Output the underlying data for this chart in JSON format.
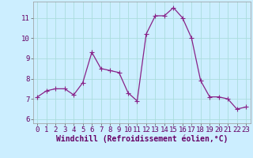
{
  "x": [
    0,
    1,
    2,
    3,
    4,
    5,
    6,
    7,
    8,
    9,
    10,
    11,
    12,
    13,
    14,
    15,
    16,
    17,
    18,
    19,
    20,
    21,
    22,
    23
  ],
  "y": [
    7.1,
    7.4,
    7.5,
    7.5,
    7.2,
    7.8,
    9.3,
    8.5,
    8.4,
    8.3,
    7.3,
    6.9,
    10.2,
    11.1,
    11.1,
    11.5,
    11.0,
    10.0,
    7.9,
    7.1,
    7.1,
    7.0,
    6.5,
    6.6
  ],
  "line_color": "#882288",
  "marker_color": "#882288",
  "bg_color": "#cceeff",
  "grid_color": "#aadddd",
  "xlabel": "Windchill (Refroidissement éolien,°C)",
  "ylim": [
    5.8,
    11.8
  ],
  "xlim": [
    -0.5,
    23.5
  ],
  "yticks": [
    6,
    7,
    8,
    9,
    10,
    11
  ],
  "xticks": [
    0,
    1,
    2,
    3,
    4,
    5,
    6,
    7,
    8,
    9,
    10,
    11,
    12,
    13,
    14,
    15,
    16,
    17,
    18,
    19,
    20,
    21,
    22,
    23
  ],
  "xlabel_fontsize": 7.0,
  "tick_fontsize": 6.5,
  "marker_size": 2.5,
  "line_width": 0.9
}
